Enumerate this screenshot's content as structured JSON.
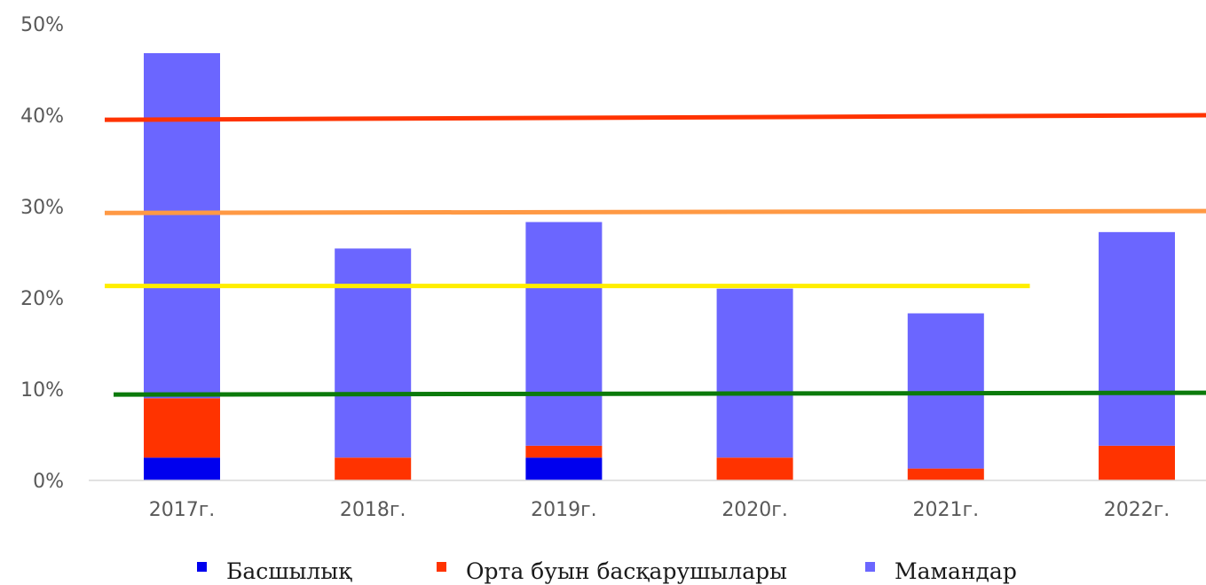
{
  "chart_data": {
    "type": "bar",
    "stacked": true,
    "categories": [
      "2017г.",
      "2018г.",
      "2019г.",
      "2020г.",
      "2021г.",
      "2022г."
    ],
    "series": [
      {
        "name": "Басшылық",
        "color": "#0000ee",
        "values": [
          2.5,
          0,
          2.5,
          0,
          0,
          0
        ]
      },
      {
        "name": "Орта буын басқарушылары",
        "color": "#ff3300",
        "values": [
          6.5,
          2.5,
          1.3,
          2.5,
          1.3,
          3.8
        ]
      },
      {
        "name": "Мамандар",
        "color": "#6b66ff",
        "values": [
          37.8,
          22.9,
          24.5,
          18.5,
          17.0,
          23.4
        ]
      }
    ],
    "reference_lines": [
      {
        "color": "#ff3300",
        "y_start": 39.5,
        "y_end": 40.0,
        "x_end": "2022г."
      },
      {
        "color": "#ff9944",
        "y_start": 29.3,
        "y_end": 29.5,
        "x_end": "2022г."
      },
      {
        "color": "#ffee00",
        "y_start": 21.3,
        "y_end": 21.3,
        "x_end": "2021г."
      },
      {
        "color": "#0b7a0b",
        "y_start": 9.4,
        "y_end": 9.6,
        "x_end": "2022г."
      }
    ],
    "yticks": [
      "0%",
      "10%",
      "20%",
      "30%",
      "40%",
      "50%"
    ],
    "ylim": [
      0,
      50
    ],
    "grid": false,
    "legend": "bottom",
    "xlabel": "",
    "ylabel": ""
  }
}
